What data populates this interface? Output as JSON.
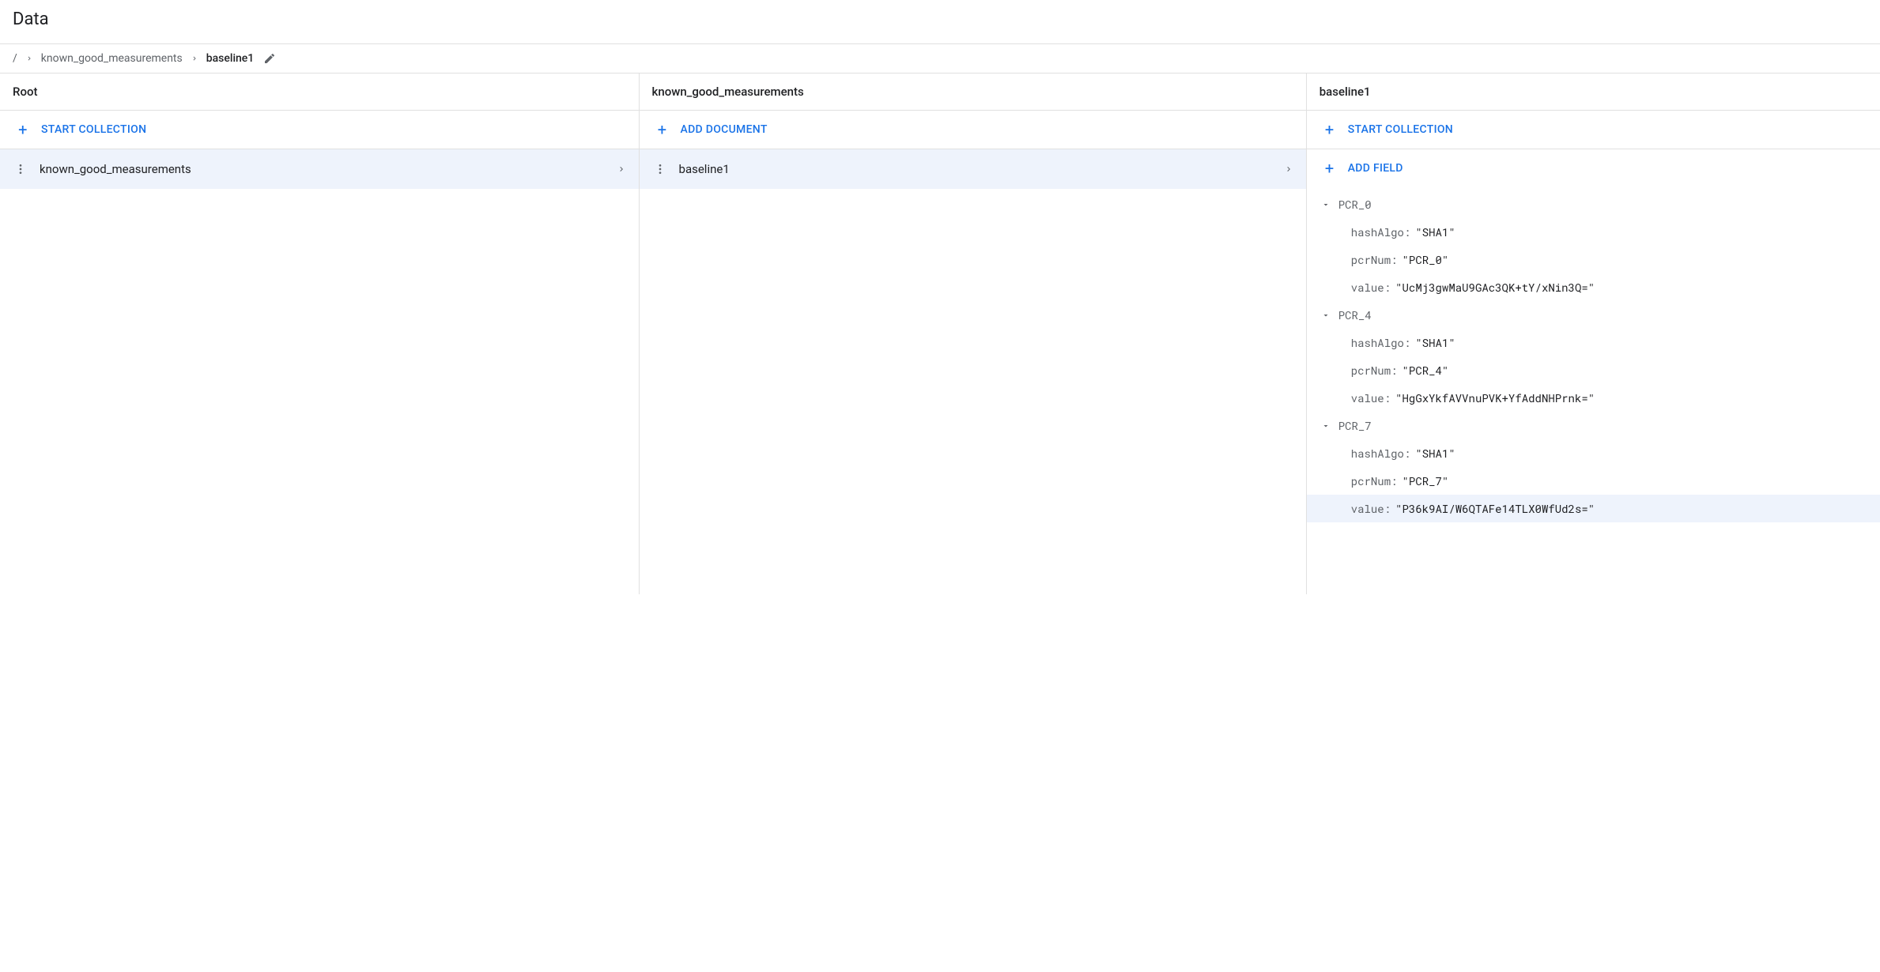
{
  "page": {
    "title": "Data"
  },
  "breadcrumb": {
    "root": "/",
    "segments": [
      {
        "label": "known_good_measurements",
        "current": false
      },
      {
        "label": "baseline1",
        "current": true
      }
    ]
  },
  "columns": {
    "root": {
      "header": "Root",
      "action_label": "START COLLECTION",
      "items": [
        {
          "label": "known_good_measurements",
          "selected": true
        }
      ]
    },
    "collection": {
      "header": "known_good_measurements",
      "action_label": "ADD DOCUMENT",
      "items": [
        {
          "label": "baseline1",
          "selected": true
        }
      ]
    },
    "document": {
      "header": "baseline1",
      "start_collection_label": "START COLLECTION",
      "add_field_label": "ADD FIELD",
      "fields": [
        {
          "name": "PCR_0",
          "expanded": true,
          "children": [
            {
              "key": "hashAlgo",
              "value": "\"SHA1\"",
              "highlight": false
            },
            {
              "key": "pcrNum",
              "value": "\"PCR_0\"",
              "highlight": false
            },
            {
              "key": "value",
              "value": "\"UcMj3gwMaU9GAc3QK+tY/xNin3Q=\"",
              "highlight": false
            }
          ]
        },
        {
          "name": "PCR_4",
          "expanded": true,
          "children": [
            {
              "key": "hashAlgo",
              "value": "\"SHA1\"",
              "highlight": false
            },
            {
              "key": "pcrNum",
              "value": "\"PCR_4\"",
              "highlight": false
            },
            {
              "key": "value",
              "value": "\"HgGxYkfAVVnuPVK+YfAddNHPrnk=\"",
              "highlight": false
            }
          ]
        },
        {
          "name": "PCR_7",
          "expanded": true,
          "children": [
            {
              "key": "hashAlgo",
              "value": "\"SHA1\"",
              "highlight": false
            },
            {
              "key": "pcrNum",
              "value": "\"PCR_7\"",
              "highlight": false
            },
            {
              "key": "value",
              "value": "\"P36k9AI/W6QTAFe14TLX0WfUd2s=\"",
              "highlight": true
            }
          ]
        }
      ]
    }
  },
  "colors": {
    "accent": "#1a73e8",
    "text_primary": "#202124",
    "text_secondary": "#5f6368",
    "selected_bg": "#eef3fc",
    "border": "#e0e0e0",
    "background": "#ffffff"
  }
}
